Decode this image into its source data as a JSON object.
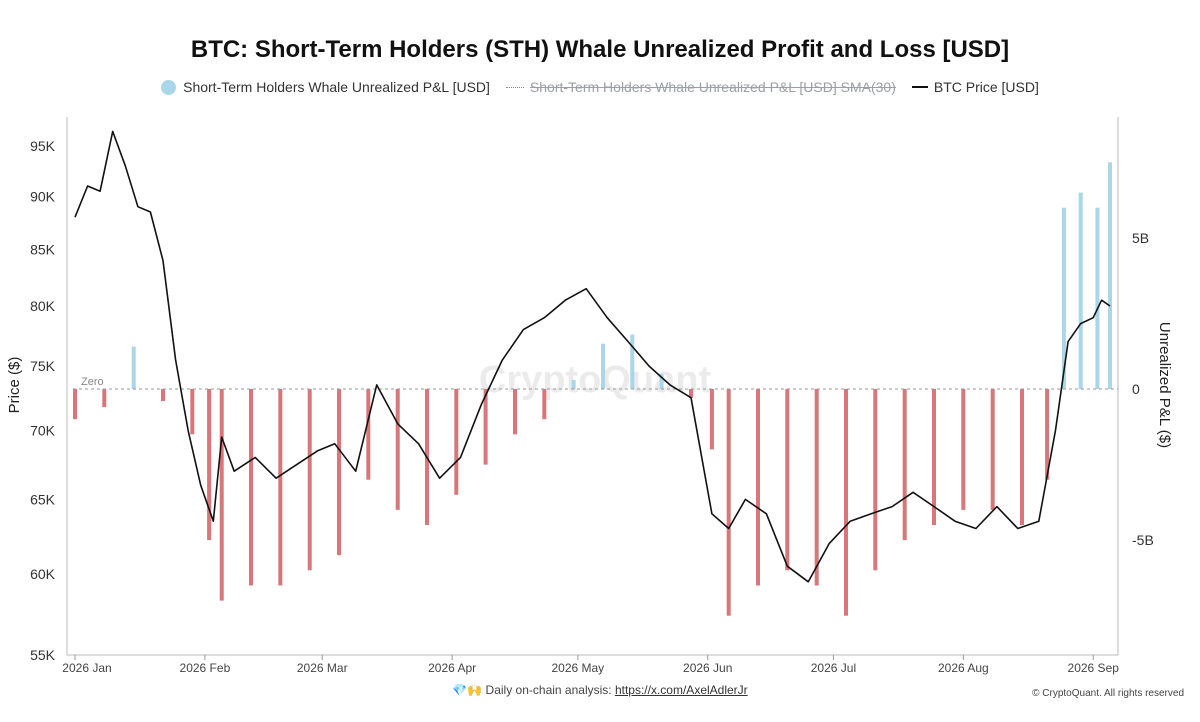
{
  "title": "BTC: Short-Term Holders (STH) Whale Unrealized Profit and Loss [USD]",
  "legend": [
    {
      "label": "Short-Term Holders Whale Unrealized P&L [USD]",
      "color": "#a9d6e8"
    },
    {
      "label": "Short-Term Holders Whale Unrealized P&L [USD] SMA(30)",
      "color": "#888888"
    },
    {
      "label": "BTC Price [USD]",
      "color": "#111111"
    }
  ],
  "footer": {
    "icons": "💎🙌",
    "text": "Daily on-chain analysis:",
    "link": "https://x.com/AxelAdlerJr"
  },
  "copyright": "© CryptoQuant. All rights reserved",
  "watermark": "CryptoQuant",
  "chart_data": {
    "type": "bar+line",
    "x_range": [
      "2026-01-01",
      "2026-09-05"
    ],
    "x_ticks": [
      "2026 Jan",
      "2026 Feb",
      "2026 Mar",
      "2026 Apr",
      "2026 May",
      "2026 Jun",
      "2026 Jul",
      "2026 Aug",
      "2026 Sep"
    ],
    "left_axis": {
      "label": "Price ($)",
      "scale": "log",
      "range": [
        55000,
        98000
      ],
      "ticks": [
        55000,
        60000,
        65000,
        70000,
        75000,
        80000,
        85000,
        90000,
        95000
      ],
      "tick_labels": [
        "55K",
        "60K",
        "65K",
        "70K",
        "75K",
        "80K",
        "85K",
        "90K",
        "95K"
      ]
    },
    "right_axis": {
      "label": "Unrealized P&L ($)",
      "range": [
        -8800000000,
        9000000000
      ],
      "ticks": [
        -5000000000,
        0,
        5000000000
      ],
      "tick_labels": [
        "-5B",
        "0",
        "5B"
      ]
    },
    "zero_label": "Zero",
    "colors": {
      "positive": "#a9d6e8",
      "negative": "#d9767a",
      "price": "#111111"
    },
    "pnl_series": {
      "name": "Short-Term Holders Whale Unrealized P&L [USD]",
      "unit": "B USD",
      "dates": [
        "2026-01-01",
        "2026-01-08",
        "2026-01-15",
        "2026-01-22",
        "2026-01-29",
        "2026-02-02",
        "2026-02-05",
        "2026-02-12",
        "2026-02-19",
        "2026-02-26",
        "2026-03-05",
        "2026-03-12",
        "2026-03-19",
        "2026-03-26",
        "2026-04-02",
        "2026-04-09",
        "2026-04-16",
        "2026-04-23",
        "2026-04-30",
        "2026-05-07",
        "2026-05-14",
        "2026-05-21",
        "2026-05-28",
        "2026-06-02",
        "2026-06-06",
        "2026-06-13",
        "2026-06-20",
        "2026-06-27",
        "2026-07-04",
        "2026-07-11",
        "2026-07-18",
        "2026-07-25",
        "2026-08-01",
        "2026-08-08",
        "2026-08-15",
        "2026-08-21",
        "2026-08-25",
        "2026-08-29",
        "2026-09-02",
        "2026-09-05"
      ],
      "values": [
        -1.0,
        -0.6,
        1.4,
        -0.4,
        -1.5,
        -5.0,
        -7.0,
        -6.5,
        -6.5,
        -6.0,
        -5.5,
        -3.0,
        -4.0,
        -4.5,
        -3.5,
        -2.5,
        -1.5,
        -1.0,
        0.3,
        1.5,
        1.8,
        0.5,
        -0.3,
        -2.0,
        -7.5,
        -6.5,
        -6.0,
        -6.5,
        -7.5,
        -6.0,
        -5.0,
        -4.5,
        -4.0,
        -4.0,
        -4.5,
        -3.0,
        6.0,
        6.5,
        6.0,
        7.5
      ]
    },
    "price_series": {
      "name": "BTC Price [USD]",
      "dates": [
        "2026-01-01",
        "2026-01-04",
        "2026-01-07",
        "2026-01-10",
        "2026-01-13",
        "2026-01-16",
        "2026-01-19",
        "2026-01-22",
        "2026-01-25",
        "2026-01-28",
        "2026-01-31",
        "2026-02-03",
        "2026-02-05",
        "2026-02-08",
        "2026-02-13",
        "2026-02-18",
        "2026-02-23",
        "2026-02-28",
        "2026-03-04",
        "2026-03-09",
        "2026-03-14",
        "2026-03-19",
        "2026-03-24",
        "2026-03-29",
        "2026-04-03",
        "2026-04-08",
        "2026-04-13",
        "2026-04-18",
        "2026-04-23",
        "2026-04-28",
        "2026-05-03",
        "2026-05-08",
        "2026-05-13",
        "2026-05-18",
        "2026-05-23",
        "2026-05-28",
        "2026-06-02",
        "2026-06-06",
        "2026-06-10",
        "2026-06-15",
        "2026-06-20",
        "2026-06-25",
        "2026-06-30",
        "2026-07-05",
        "2026-07-10",
        "2026-07-15",
        "2026-07-20",
        "2026-07-25",
        "2026-07-30",
        "2026-08-04",
        "2026-08-09",
        "2026-08-14",
        "2026-08-19",
        "2026-08-23",
        "2026-08-26",
        "2026-08-29",
        "2026-09-01",
        "2026-09-03",
        "2026-09-05"
      ],
      "values": [
        88000,
        91000,
        90500,
        96500,
        93000,
        89000,
        88500,
        84000,
        75500,
        70000,
        66000,
        63500,
        69500,
        67000,
        68000,
        66500,
        67500,
        68500,
        69000,
        67000,
        73500,
        70500,
        69000,
        66500,
        68000,
        72000,
        75500,
        78000,
        79000,
        80500,
        81500,
        79000,
        77000,
        75000,
        73500,
        72500,
        64000,
        63000,
        65000,
        64000,
        60500,
        59500,
        62000,
        63500,
        64000,
        64500,
        65500,
        64500,
        63500,
        63000,
        64500,
        63000,
        63500,
        70000,
        77000,
        78500,
        79000,
        80500,
        80000
      ]
    }
  }
}
